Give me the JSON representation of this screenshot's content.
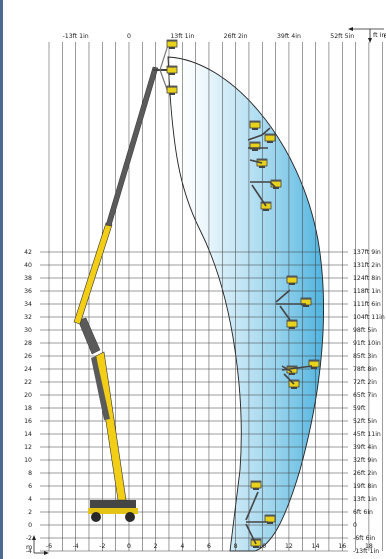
{
  "units": {
    "metric": "m",
    "imperial": "ft in"
  },
  "axes": {
    "x_m_labels": [
      "-6",
      "-4",
      "-2",
      "0",
      "2",
      "4",
      "6",
      "8",
      "10",
      "12",
      "14",
      "16",
      "18",
      "20",
      "22"
    ],
    "x_m_values": [
      -6,
      -4,
      -2,
      0,
      2,
      4,
      6,
      8,
      10,
      12,
      14,
      16,
      18,
      20,
      22
    ],
    "x_ft_labels": [
      "-13ft 1in",
      "0",
      "13ft 1in",
      "26ft 2in",
      "39ft 4in",
      "52ft 5in",
      "65ft 7in"
    ],
    "x_ft_values_m": [
      -4,
      0,
      4,
      8,
      12,
      16,
      20
    ],
    "y_m_labels": [
      "-4",
      "-2",
      "0",
      "2",
      "4",
      "6",
      "8",
      "10",
      "12",
      "14",
      "16",
      "18",
      "20",
      "22",
      "24",
      "26",
      "28",
      "30",
      "32",
      "34",
      "36",
      "38",
      "40",
      "42"
    ],
    "y_m_values": [
      -4,
      -2,
      0,
      2,
      4,
      6,
      8,
      10,
      12,
      14,
      16,
      18,
      20,
      22,
      24,
      26,
      28,
      30,
      32,
      34,
      36,
      38,
      40,
      42
    ],
    "y_ft_labels": [
      "-13ft 1in",
      "-6ft 6in",
      "0",
      "6ft 6in",
      "13ft 1in",
      "19ft 8in",
      "26ft 2in",
      "32ft 9in",
      "39ft 4in",
      "45ft 11in",
      "52ft 5in",
      "59ft",
      "65ft 7in",
      "72ft 2in",
      "78ft 8in",
      "85ft 3in",
      "91ft 10in",
      "98ft 5in",
      "104ft 11in",
      "111ft 6in",
      "118ft 1in",
      "124ft 8in",
      "131ft 2in",
      "137ft 9in"
    ]
  },
  "colors": {
    "frame": "#4d6a90",
    "grid": "#3a3a3a",
    "envelope_fill": "#5bb9e2",
    "machine_yellow": "#f2cf16",
    "machine_gray": "#5a5a5a",
    "basket": "#e8d21c"
  },
  "icons": [
    "arrow-icon",
    "basket-icon",
    "machine-icon"
  ]
}
